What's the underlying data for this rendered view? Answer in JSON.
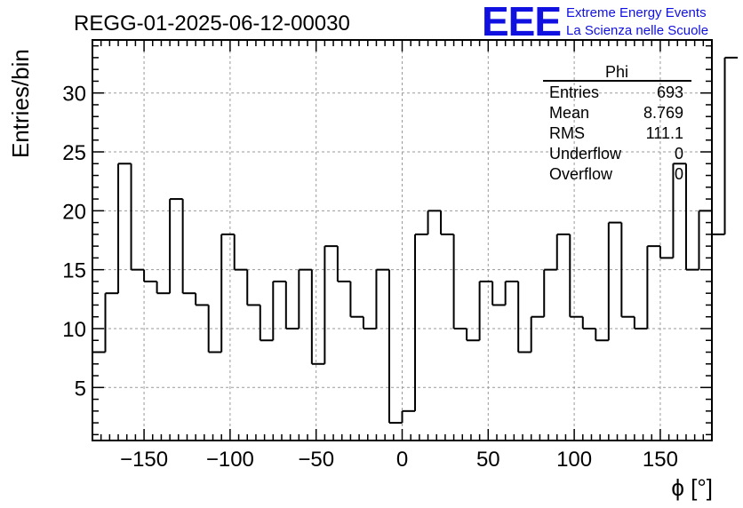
{
  "header": {
    "run_title": "REGG-01-2025-06-12-00030",
    "logo_text": "EEE",
    "logo_line1": "Extreme Energy Events",
    "logo_line2": "La Scienza nelle Scuole",
    "logo_color": "#1010e0"
  },
  "stats": {
    "name": "Phi",
    "rows": [
      {
        "label": "Entries",
        "value": "693"
      },
      {
        "label": "Mean",
        "value": "8.769"
      },
      {
        "label": "RMS",
        "value": "111.1"
      },
      {
        "label": "Underflow",
        "value": "0"
      },
      {
        "label": "Overflow",
        "value": "0"
      }
    ]
  },
  "chart_data": {
    "type": "histogram",
    "title": "REGG-01-2025-06-12-00030",
    "xlabel": "ϕ [°]",
    "ylabel": "Entries/bin",
    "xlim": [
      -180,
      180
    ],
    "ylim": [
      0.5,
      34.5
    ],
    "bin_width": 7.5,
    "bin_start": -180,
    "values": [
      8,
      13,
      24,
      15,
      14,
      13,
      21,
      13,
      12,
      8,
      18,
      15,
      12,
      9,
      14,
      10,
      15,
      7,
      17,
      14,
      11,
      10,
      15,
      2,
      3,
      18,
      20,
      18,
      10,
      9,
      14,
      12,
      14,
      8,
      11,
      15,
      18,
      11,
      10,
      9,
      19,
      11,
      10,
      17,
      16,
      24,
      15,
      20,
      18,
      33
    ],
    "x_ticks": [
      -150,
      -100,
      -50,
      0,
      50,
      100,
      150
    ],
    "x_tick_labels": [
      "−150",
      "−100",
      "−50",
      "0",
      "50",
      "100",
      "150"
    ],
    "y_ticks": [
      5,
      10,
      15,
      20,
      25,
      30
    ],
    "y_tick_labels": [
      "5",
      "10",
      "15",
      "20",
      "25",
      "30"
    ],
    "grid": true,
    "legend": "top-right"
  }
}
